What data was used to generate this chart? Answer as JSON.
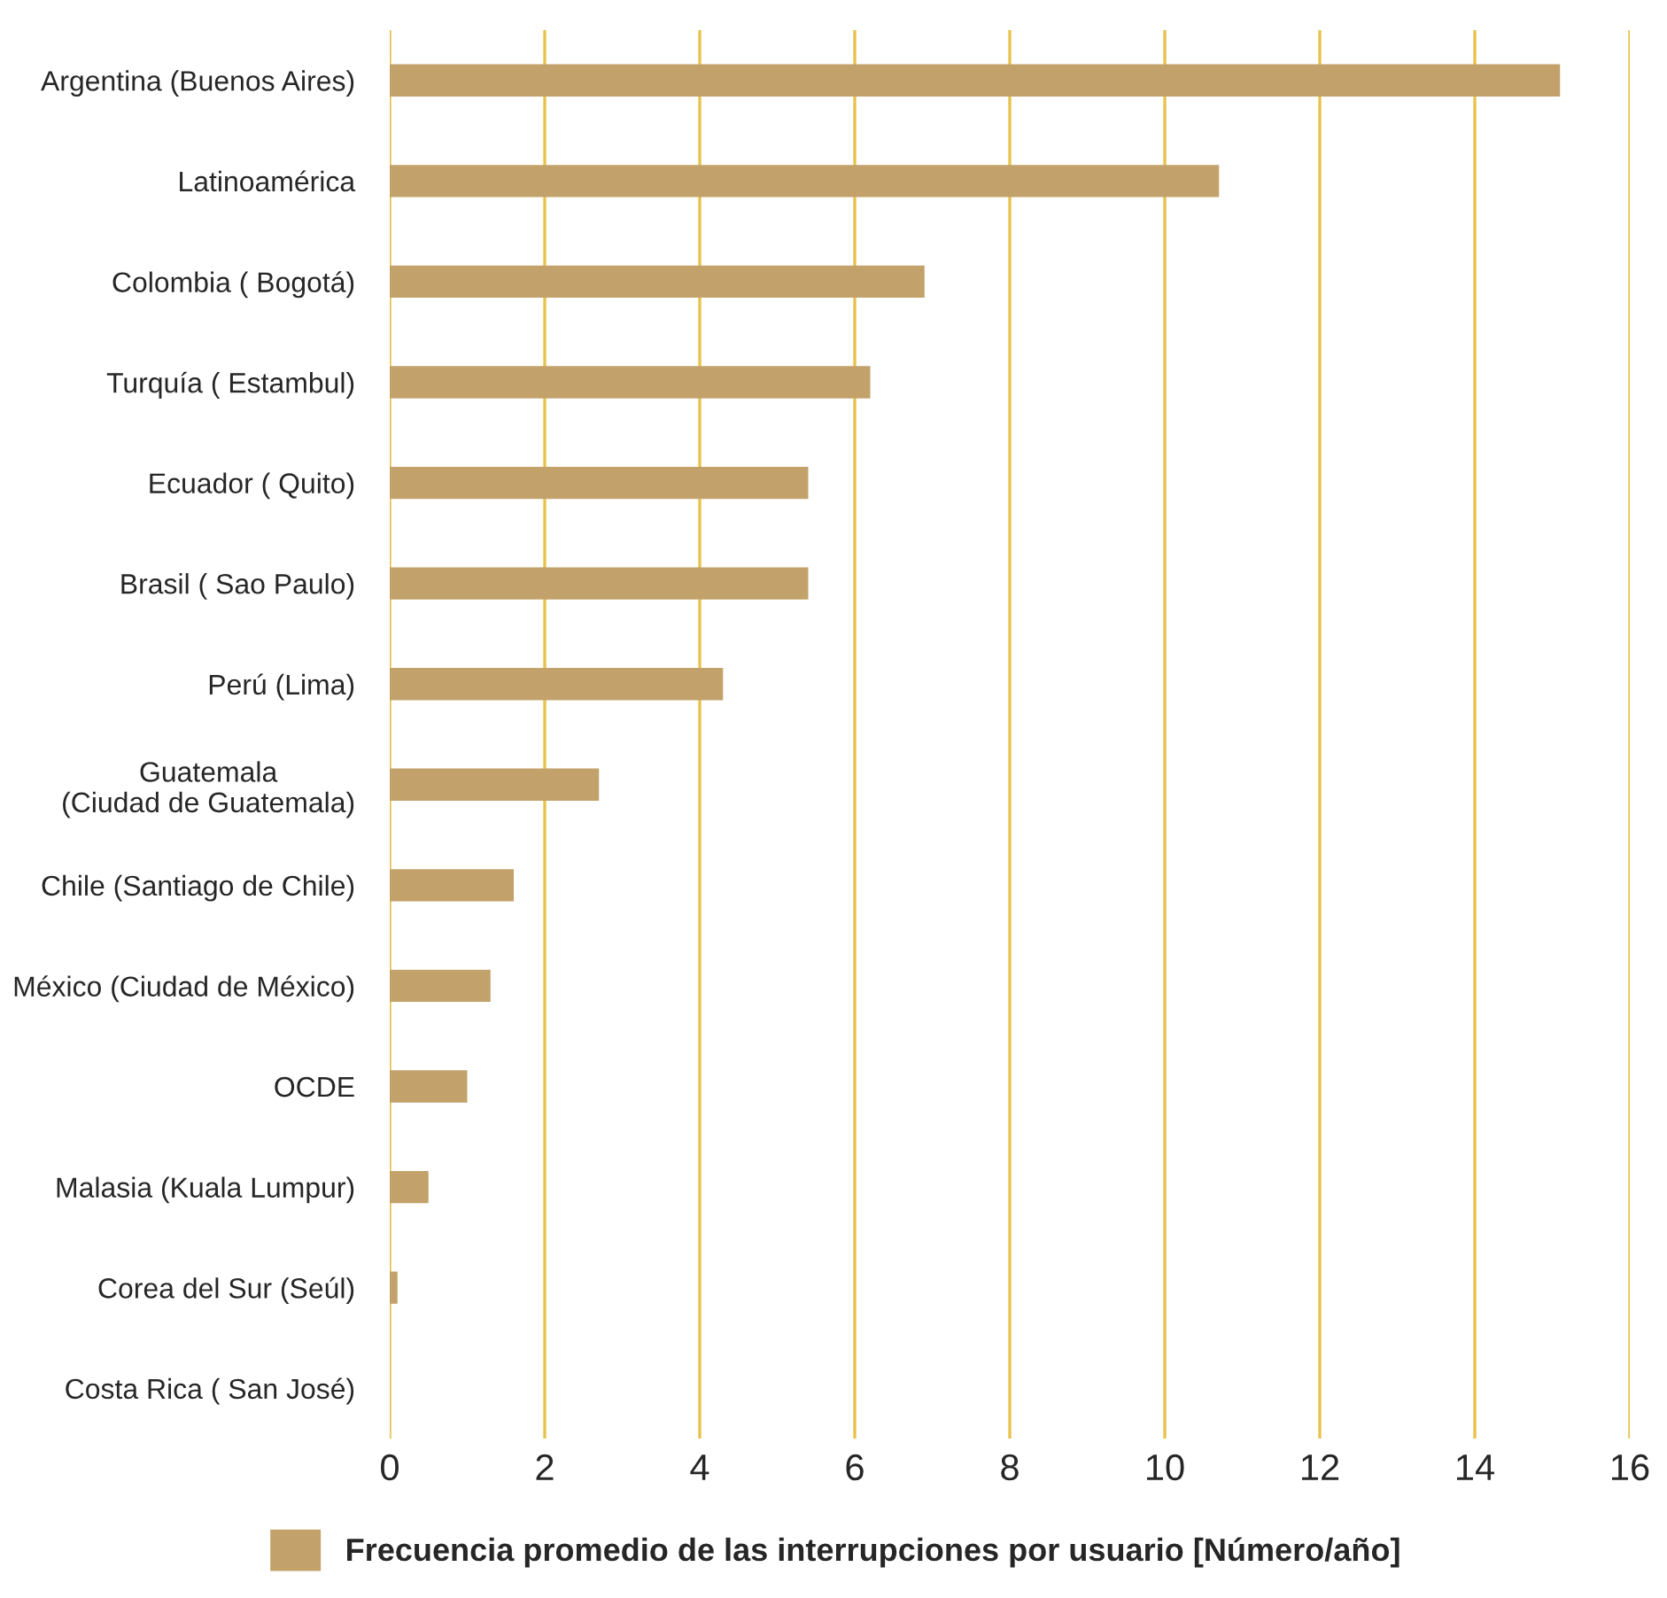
{
  "chart_data": {
    "type": "bar",
    "orientation": "horizontal",
    "categories": [
      "Argentina (Buenos Aires)",
      "Latinoamérica",
      "Colombia ( Bogotá)",
      "Turquía ( Estambul)",
      "Ecuador ( Quito)",
      "Brasil ( Sao Paulo)",
      "Perú (Lima)",
      "Guatemala\n(Ciudad de Guatemala)",
      "Chile (Santiago de Chile)",
      "México (Ciudad de México)",
      "OCDE",
      "Malasia (Kuala Lumpur)",
      "Corea del Sur (Seúl)",
      "Costa Rica ( San José)"
    ],
    "series": [
      {
        "name": "Frecuencia promedio de las interrupciones por usuario [Número/año]",
        "color": "#c2a26a",
        "values": [
          15.1,
          10.7,
          6.9,
          6.2,
          5.4,
          5.4,
          4.3,
          2.7,
          1.6,
          1.3,
          1.0,
          0.5,
          0.1,
          0
        ]
      }
    ],
    "xlim": [
      0,
      16
    ],
    "xticks": [
      0,
      2,
      4,
      6,
      8,
      10,
      12,
      14,
      16
    ],
    "grid": "x",
    "legend": "bottom"
  }
}
